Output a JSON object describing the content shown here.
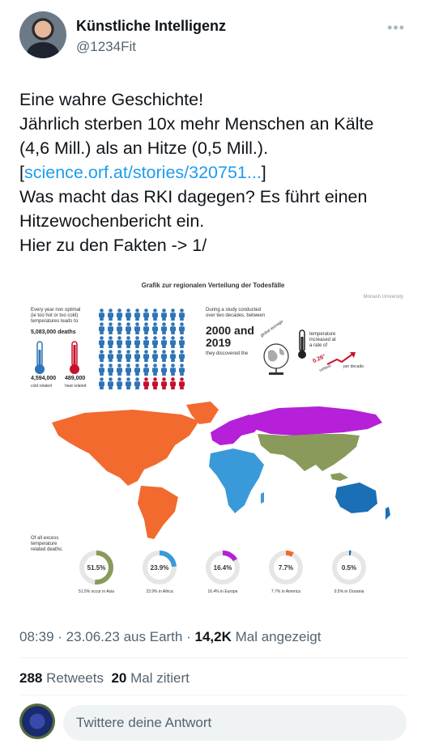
{
  "author": {
    "name": "Künstliche Intelligenz",
    "handle": "@1234Fit"
  },
  "tweet": {
    "line1": "Eine wahre Geschichte!",
    "line2": "Jährlich sterben 10x mehr Menschen an Kälte",
    "line3": "(4,6 Mill.) als an Hitze (0,5 Mill.).",
    "link_open": "[",
    "link_text": "science.orf.at/stories/320751...",
    "link_close": "]",
    "line5": "Was macht das RKI dagegen? Es führt einen",
    "line6": "Hitzewochenbericht ein.",
    "line7": "Hier zu den Fakten -> 1/"
  },
  "infographic": {
    "title": "Grafik zur regionalen Verteilung der Todesfälle",
    "source": "Monash University",
    "intro_l1": "Every year non optimal",
    "intro_l2": "(ie too hot or too cold)",
    "intro_l3": "temperatures leads to:",
    "total_deaths": "5,083,000 deaths",
    "cold_value": "4,594,000",
    "cold_label": "cold related",
    "heat_value": "489,000",
    "heat_label": "heat related",
    "study_l1": "During a study conducted",
    "study_l2": "over two decades, between",
    "years_l1": "2000 and",
    "years_l2": "2019",
    "discovered": "they discovered the",
    "global_average": "global average",
    "temp_l1": "temperature",
    "temp_l2": "increased at",
    "temp_l3": "a rate of",
    "rate": "0.26°",
    "rate_unit": "celsius",
    "per_decade": "per decade.",
    "excess_l1": "Of all excess",
    "excess_l2": "temperature",
    "excess_l3": "related deaths:",
    "donuts": [
      {
        "label": "51.5%",
        "caption": "51.5% occur in Asia",
        "value": 51.5,
        "color": "#8a9a5b"
      },
      {
        "label": "23.9%",
        "caption": "23.9% in Africa",
        "value": 23.9,
        "color": "#3a9ad9"
      },
      {
        "label": "16.4%",
        "caption": "16.4% in Europe",
        "value": 16.4,
        "color": "#b520d8"
      },
      {
        "label": "7.7%",
        "caption": "7.7% in America",
        "value": 7.7,
        "color": "#f26a2e"
      },
      {
        "label": "0.5%",
        "caption": "0.5% in Oceania",
        "value": 0.5,
        "color": "#1a6fb5"
      }
    ],
    "colors": {
      "cold_people": "#2e75b6",
      "heat_people": "#c8102e",
      "america": "#f26a2e",
      "africa": "#3a9ad9",
      "europe": "#b520d8",
      "asia": "#8a9a5b",
      "oceania": "#1a6fb5",
      "other": "#d9d9d9"
    }
  },
  "meta": {
    "time": "08:39",
    "date": "23.06.23",
    "source": "aus Earth",
    "views": "14,2K",
    "views_label": "Mal angezeigt"
  },
  "stats": {
    "retweets": "288",
    "retweets_label": "Retweets",
    "quotes": "20",
    "quotes_label": "Mal zitiert"
  },
  "reply": {
    "placeholder": "Twittere deine Antwort"
  }
}
